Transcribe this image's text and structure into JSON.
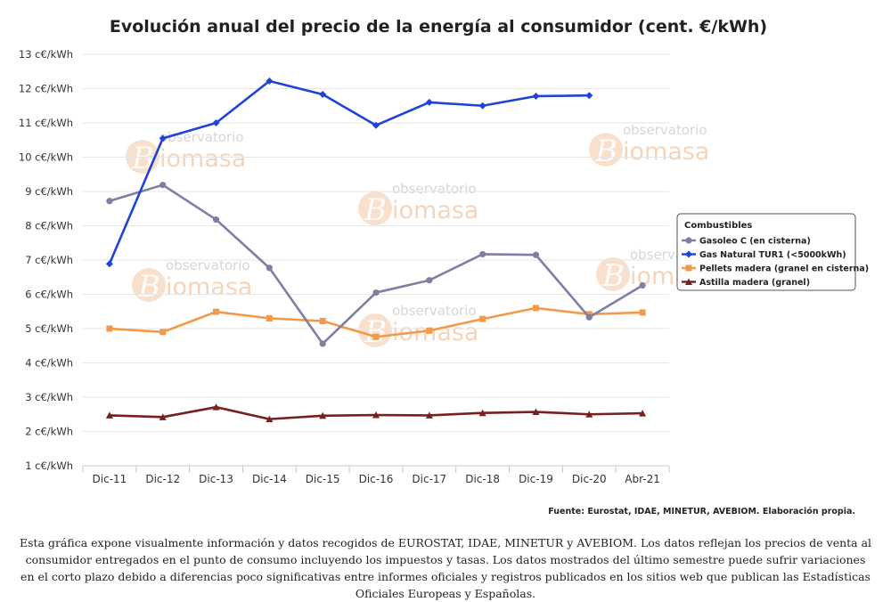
{
  "chart_data": {
    "type": "line",
    "title": "Evolución anual del precio de la energía al consumidor (cent. €/kWh)",
    "categories": [
      "Dic-11",
      "Dic-12",
      "Dic-13",
      "Dic-14",
      "Dic-15",
      "Dic-16",
      "Dic-17",
      "Dic-18",
      "Dic-19",
      "Dic-20",
      "Abr-21"
    ],
    "y_tick_labels": [
      "1 c€/kWh",
      "2 c€/kWh",
      "3 c€/kWh",
      "4 c€/kWh",
      "5 c€/kWh",
      "6 c€/kWh",
      "7 c€/kWh",
      "8 c€/kWh",
      "9 c€/kWh",
      "10 c€/kWh",
      "11 c€/kWh",
      "12 c€/kWh",
      "13 c€/kWh"
    ],
    "ylim": [
      1,
      13
    ],
    "grid": true,
    "legend_title": "Combustibles",
    "legend_position": "right",
    "series": [
      {
        "name": "Gasoleo C (en cisterna)",
        "color": "#7f7fa6",
        "marker": "circle",
        "values": [
          8.72,
          9.19,
          8.18,
          6.77,
          4.56,
          6.05,
          6.41,
          7.17,
          7.15,
          5.33,
          6.26
        ]
      },
      {
        "name": "Gas Natural TUR1 (<5000kWh)",
        "color": "#1f43d6",
        "marker": "diamond",
        "values": [
          6.89,
          10.55,
          11.0,
          12.22,
          11.83,
          10.93,
          11.6,
          11.5,
          11.78,
          11.8,
          null
        ]
      },
      {
        "name": "Pellets madera (granel en cisterna)",
        "color": "#f39a4a",
        "marker": "square",
        "values": [
          5.0,
          4.9,
          5.49,
          5.3,
          5.22,
          4.76,
          4.94,
          5.28,
          5.6,
          5.42,
          5.47
        ]
      },
      {
        "name": "Astilla madera (granel)",
        "color": "#7a1f1f",
        "marker": "triangle",
        "values": [
          2.47,
          2.42,
          2.71,
          2.36,
          2.46,
          2.48,
          2.47,
          2.54,
          2.57,
          2.5,
          2.53
        ]
      }
    ],
    "watermark": {
      "line1": "observatorio",
      "line2": "iomasa",
      "letter": "B"
    }
  },
  "source": "Fuente: Eurostat, IDAE, MINETUR, AVEBIOM. Elaboración propia.",
  "note": "Esta gráfica expone visualmente información y datos recogidos de EUROSTAT, IDAE, MINETUR y AVEBIOM. Los datos reflejan los precios de venta al consumidor entregados en el punto de consumo incluyendo los impuestos y tasas. Los datos mostrados del último semestre puede sufrir variaciones en el corto plazo debido a diferencias poco significativas entre informes oficiales y registros publicados en los sitios web que publican las Estadísticas Oficiales Europeas y Españolas."
}
